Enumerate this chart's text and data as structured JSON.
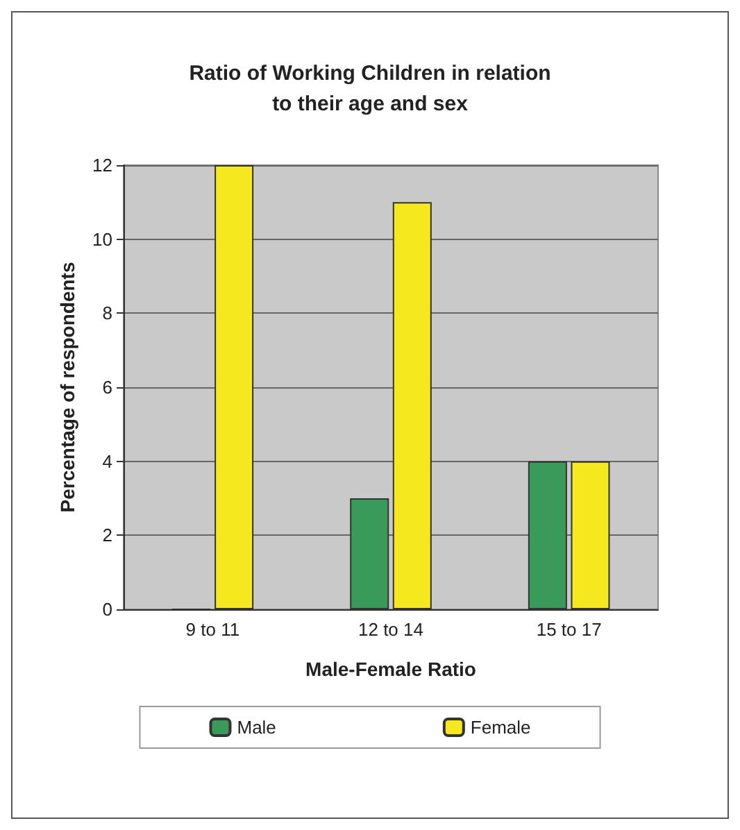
{
  "chart_data": {
    "type": "bar",
    "title": "Ratio of Working Children in relation\nto their age and sex",
    "xlabel": "Male-Female Ratio",
    "ylabel": "Percentage of respondents",
    "categories": [
      "9 to 11",
      "12 to 14",
      "15 to 17"
    ],
    "series": [
      {
        "name": "Male",
        "color": "#3a9a5a",
        "values": [
          0,
          3,
          4
        ]
      },
      {
        "name": "Female",
        "color": "#f5e81e",
        "values": [
          12,
          11,
          4
        ]
      }
    ],
    "ylim": [
      0,
      12
    ],
    "yticks": [
      0,
      2,
      4,
      6,
      8,
      10,
      12
    ],
    "grid": "y",
    "legend": "bottom"
  }
}
